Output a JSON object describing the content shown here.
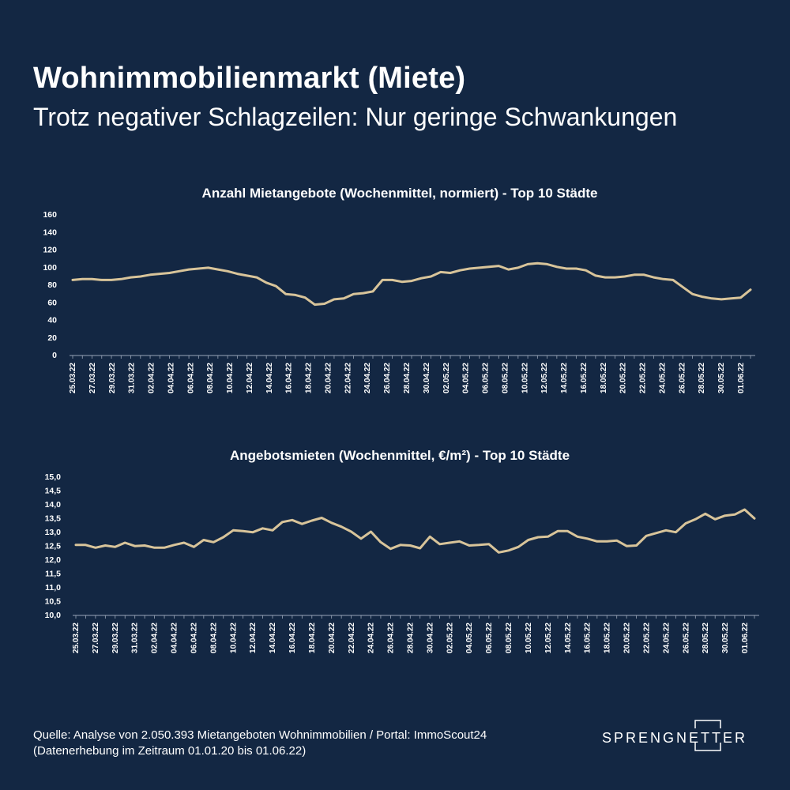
{
  "header": {
    "title": "Wohnimmobilienmarkt (Miete)",
    "subtitle": "Trotz negativer Schlagzeilen: Nur geringe Schwankungen"
  },
  "footer": {
    "line1": "Quelle: Analyse von 2.050.393 Mietangeboten Wohnimmobilien / Portal: ImmoScout24",
    "line2": "(Datenerhebung im Zeitraum  01.01.20 bis 01.06.22)"
  },
  "logo": {
    "text": "SPRENGNETTER"
  },
  "colors": {
    "background": "#132743",
    "line": "#d8c49a",
    "text": "#ffffff"
  },
  "chart_data": [
    {
      "type": "line",
      "title": "Anzahl Mietangebote (Wochenmittel, normiert) - Top 10 Städte",
      "ylim": [
        0,
        160
      ],
      "yticks": [
        "0",
        "20",
        "40",
        "60",
        "80",
        "100",
        "120",
        "140",
        "160"
      ],
      "xtick_labels": [
        "25.03.22",
        "27.03.22",
        "29.03.22",
        "31.03.22",
        "02.04.22",
        "04.04.22",
        "06.04.22",
        "08.04.22",
        "10.04.22",
        "12.04.22",
        "14.04.22",
        "16.04.22",
        "18.04.22",
        "20.04.22",
        "22.04.22",
        "24.04.22",
        "26.04.22",
        "28.04.22",
        "30.04.22",
        "02.05.22",
        "04.05.22",
        "06.05.22",
        "08.05.22",
        "10.05.22",
        "12.05.22",
        "14.05.22",
        "16.05.22",
        "18.05.22",
        "20.05.22",
        "22.05.22",
        "24.05.22",
        "26.05.22",
        "28.05.22",
        "30.05.22",
        "01.06.22"
      ],
      "series": [
        {
          "values": [
            85,
            86,
            86,
            85,
            85,
            86,
            88,
            89,
            91,
            92,
            93,
            95,
            97,
            98,
            99,
            97,
            95,
            92,
            90,
            88,
            82,
            78,
            69,
            68,
            65,
            57,
            58,
            63,
            64,
            69,
            70,
            72,
            85,
            85,
            83,
            84,
            87,
            89,
            94,
            93,
            96,
            98,
            99,
            100,
            101,
            97,
            99,
            103,
            104,
            103,
            100,
            98,
            98,
            96,
            90,
            88,
            88,
            89,
            91,
            91,
            88,
            86,
            85,
            77,
            69,
            66,
            64,
            63,
            64,
            65,
            74
          ]
        }
      ],
      "grid": false
    },
    {
      "type": "line",
      "title": "Angebotsmieten (Wochenmittel, €/m²) - Top 10 Städte",
      "ylim": [
        10.0,
        15.0
      ],
      "yticks": [
        "10,0",
        "10,5",
        "11,0",
        "11,5",
        "12,0",
        "12,5",
        "13,0",
        "13,5",
        "14,0",
        "14,5",
        "15,0"
      ],
      "xtick_labels": [
        "25.03.22",
        "27.03.22",
        "29.03.22",
        "31.03.22",
        "02.04.22",
        "04.04.22",
        "06.04.22",
        "08.04.22",
        "10.04.22",
        "12.04.22",
        "14.04.22",
        "16.04.22",
        "18.04.22",
        "20.04.22",
        "22.04.22",
        "24.04.22",
        "26.04.22",
        "28.04.22",
        "30.04.22",
        "02.05.22",
        "04.05.22",
        "06.05.22",
        "08.05.22",
        "10.05.22",
        "12.05.22",
        "14.05.22",
        "16.05.22",
        "18.05.22",
        "20.05.22",
        "22.05.22",
        "24.05.22",
        "26.05.22",
        "28.05.22",
        "30.05.22",
        "01.06.22"
      ],
      "series": [
        {
          "values": [
            12.52,
            12.52,
            12.42,
            12.5,
            12.45,
            12.6,
            12.48,
            12.5,
            12.42,
            12.42,
            12.52,
            12.6,
            12.45,
            12.7,
            12.62,
            12.8,
            13.05,
            13.02,
            12.98,
            13.12,
            13.05,
            13.35,
            13.42,
            13.28,
            13.4,
            13.5,
            13.32,
            13.18,
            13.0,
            12.75,
            13.0,
            12.62,
            12.38,
            12.52,
            12.5,
            12.4,
            12.82,
            12.55,
            12.6,
            12.65,
            12.5,
            12.52,
            12.55,
            12.25,
            12.32,
            12.45,
            12.7,
            12.8,
            12.82,
            13.02,
            13.02,
            12.82,
            12.75,
            12.65,
            12.65,
            12.68,
            12.48,
            12.5,
            12.85,
            12.95,
            13.05,
            12.98,
            13.3,
            13.45,
            13.65,
            13.45,
            13.58,
            13.62,
            13.8,
            13.48
          ]
        }
      ],
      "grid": false
    }
  ]
}
